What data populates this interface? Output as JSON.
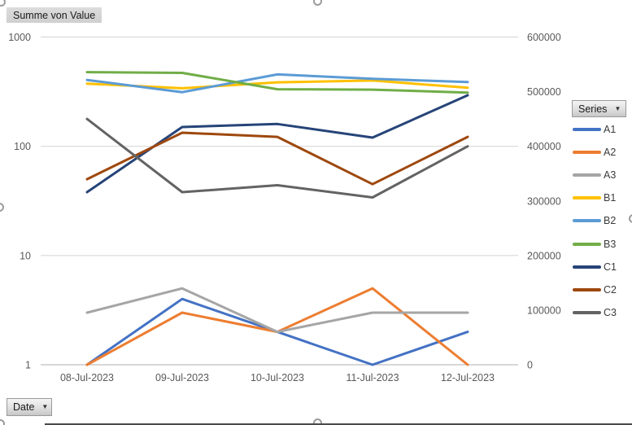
{
  "pivot": {
    "value_field": "Summe von Value",
    "series_field": "Series",
    "date_field": "Date",
    "dropdown_arrow": "▼"
  },
  "colors": {
    "gridline": "#d9d9d9",
    "axis_line": "#bfbfbf",
    "axis_text": "#595959",
    "legend_text": "#3b3b3b"
  },
  "chart_data": {
    "type": "line",
    "title": "",
    "x": [
      "08-Jul-2023",
      "09-Jul-2023",
      "10-Jul-2023",
      "11-Jul-2023",
      "12-Jul-2023"
    ],
    "series": [
      {
        "name": "A1",
        "color": "#4472C4",
        "values": [
          1,
          4,
          2,
          1,
          2
        ]
      },
      {
        "name": "A2",
        "color": "#ED7D31",
        "values": [
          1,
          3,
          2,
          5,
          1
        ]
      },
      {
        "name": "A3",
        "color": "#A5A5A5",
        "values": [
          3,
          5,
          2,
          3,
          3
        ]
      },
      {
        "name": "B1",
        "color": "#FFC000",
        "values": [
          375,
          340,
          385,
          400,
          343
        ]
      },
      {
        "name": "B2",
        "color": "#5B9BD5",
        "values": [
          405,
          313,
          455,
          415,
          387
        ]
      },
      {
        "name": "B3",
        "color": "#70AD47",
        "values": [
          477,
          470,
          333,
          330,
          310
        ]
      },
      {
        "name": "C1",
        "color": "#264478",
        "values": [
          38,
          150,
          160,
          120,
          293
        ]
      },
      {
        "name": "C2",
        "color": "#9E480E",
        "values": [
          50,
          133,
          122,
          45,
          122
        ]
      },
      {
        "name": "C3",
        "color": "#636363",
        "values": [
          178,
          38,
          44,
          34,
          100
        ]
      }
    ],
    "left_axis": {
      "scale": "log",
      "ticks": [
        "1",
        "10",
        "100",
        "1000"
      ],
      "range": [
        1,
        1000
      ]
    },
    "right_axis": {
      "scale": "linear",
      "ticks": [
        "0",
        "100000",
        "200000",
        "300000",
        "400000",
        "500000",
        "600000"
      ],
      "range": [
        0,
        600000
      ]
    },
    "legend": {
      "position": "right",
      "title": "Series"
    },
    "grid": true
  }
}
